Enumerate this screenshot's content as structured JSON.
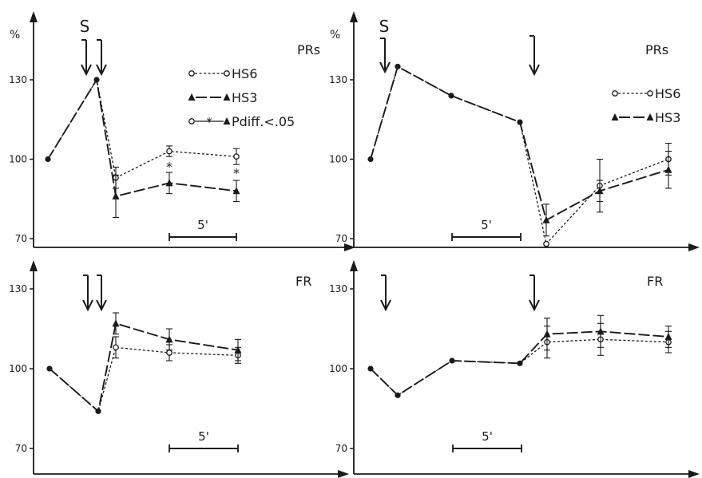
{
  "chart_data": [
    {
      "type": "line",
      "panel_label": "PRs",
      "y_unit": "%",
      "y_ticks": [
        "130",
        "100",
        "70"
      ],
      "ylim": [
        70,
        130
      ],
      "stimulus_label": "S",
      "scale_bar_label": "5'",
      "legend": [
        {
          "name": "HS6",
          "marker": "open-circle",
          "dash": "short"
        },
        {
          "name": "HS3",
          "marker": "filled-triangle",
          "dash": "long"
        },
        {
          "name": "Pdiff.<.05",
          "marker": "asterisk",
          "dash": "none"
        }
      ],
      "series": [
        {
          "name": "HS6",
          "x": [
            0,
            1,
            2,
            3,
            4
          ],
          "values": [
            100,
            130,
            93,
            103,
            101
          ],
          "err": [
            0,
            0,
            4,
            2,
            3
          ]
        },
        {
          "name": "HS3",
          "x": [
            0,
            1,
            2,
            3,
            4
          ],
          "values": [
            100,
            130,
            86,
            91,
            88
          ],
          "err": [
            0,
            0,
            8,
            4,
            4
          ]
        }
      ],
      "significant_x": [
        3,
        4
      ]
    },
    {
      "type": "line",
      "panel_label": "PRs",
      "y_unit": "%",
      "y_ticks": [
        "130",
        "100",
        "70"
      ],
      "ylim": [
        70,
        130
      ],
      "stimulus_label": "S",
      "scale_bar_label": "5'",
      "legend": [
        {
          "name": "HS6",
          "marker": "open-circle",
          "dash": "short"
        },
        {
          "name": "HS3",
          "marker": "filled-triangle",
          "dash": "long"
        }
      ],
      "series": [
        {
          "name": "HS6",
          "x": [
            0,
            1,
            2,
            3,
            4,
            5,
            6
          ],
          "values": [
            100,
            135,
            124,
            114,
            68,
            90,
            100
          ],
          "err": [
            0,
            0,
            0,
            0,
            0,
            10,
            6
          ]
        },
        {
          "name": "HS3",
          "x": [
            0,
            1,
            2,
            3,
            4,
            5,
            6
          ],
          "values": [
            100,
            135,
            124,
            114,
            77,
            88,
            96
          ],
          "err": [
            0,
            0,
            0,
            0,
            6,
            4,
            7
          ]
        }
      ]
    },
    {
      "type": "line",
      "panel_label": "FR",
      "y_ticks": [
        "130",
        "100",
        "70"
      ],
      "ylim": [
        70,
        130
      ],
      "scale_bar_label": "5'",
      "series": [
        {
          "name": "HS6",
          "x": [
            0,
            1,
            2,
            3,
            4
          ],
          "values": [
            100,
            84,
            108,
            106,
            105
          ],
          "err": [
            0,
            0,
            4,
            3,
            3
          ]
        },
        {
          "name": "HS3",
          "x": [
            0,
            1,
            2,
            3,
            4
          ],
          "values": [
            100,
            84,
            117,
            111,
            107
          ],
          "err": [
            0,
            0,
            4,
            4,
            4
          ]
        }
      ]
    },
    {
      "type": "line",
      "panel_label": "FR",
      "y_ticks": [
        "130",
        "100",
        "70"
      ],
      "ylim": [
        70,
        130
      ],
      "scale_bar_label": "5'",
      "series": [
        {
          "name": "HS6",
          "x": [
            0,
            1,
            2,
            3,
            4,
            5,
            6
          ],
          "values": [
            100,
            90,
            103,
            102,
            110,
            111,
            110
          ],
          "err": [
            0,
            0,
            0,
            0,
            6,
            6,
            4
          ]
        },
        {
          "name": "HS3",
          "x": [
            0,
            1,
            2,
            3,
            4,
            5,
            6
          ],
          "values": [
            100,
            90,
            103,
            102,
            113,
            114,
            112
          ],
          "err": [
            0,
            0,
            0,
            0,
            6,
            6,
            4
          ]
        }
      ]
    }
  ]
}
